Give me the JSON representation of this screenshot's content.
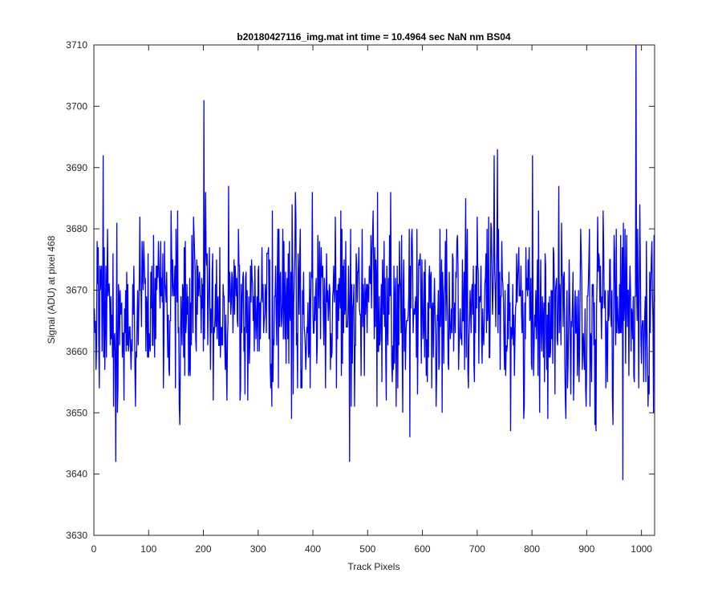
{
  "chart_data": {
    "type": "line",
    "title": "b20180427116_img.mat int time = 10.4964 sec  NaN nm BS04",
    "xlabel": "Track Pixels",
    "ylabel": "Signal (ADU) at pixel 468",
    "xlim": [
      0,
      1024
    ],
    "ylim": [
      3630,
      3710
    ],
    "x_ticks": [
      0,
      100,
      200,
      300,
      400,
      500,
      600,
      700,
      800,
      900,
      1000
    ],
    "y_ticks": [
      3630,
      3640,
      3650,
      3660,
      3670,
      3680,
      3690,
      3700,
      3710
    ],
    "grid": false,
    "legend": "none",
    "series": [
      {
        "color": "#0000ff",
        "x_start": 1,
        "x_step": 1,
        "notable_points": [
          {
            "x": 17,
            "y": 3692
          },
          {
            "x": 40,
            "y": 3642
          },
          {
            "x": 201,
            "y": 3701
          },
          {
            "x": 467,
            "y": 3642
          },
          {
            "x": 737,
            "y": 3693
          },
          {
            "x": 966,
            "y": 3639
          },
          {
            "x": 990,
            "y": 3711
          }
        ],
        "typical_range": [
          3652,
          3686
        ],
        "mean": 3667
      }
    ]
  }
}
